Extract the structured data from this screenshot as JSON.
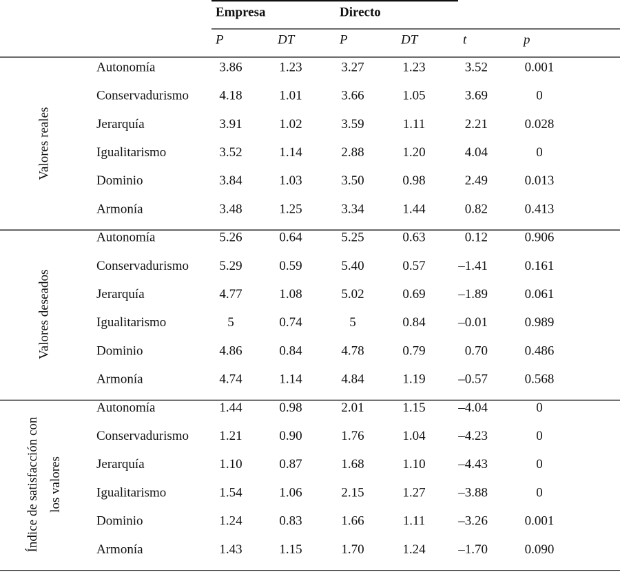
{
  "table": {
    "column_groups": [
      "Empresa",
      "Directo"
    ],
    "subheaders": [
      "P",
      "DT",
      "P",
      "DT",
      "t",
      "p"
    ],
    "groups": [
      {
        "label": [
          "Valores reales"
        ],
        "rows": [
          [
            "Autonomía",
            "3.86",
            "1.23",
            "3.27",
            "1.23",
            "3.52",
            "0.001"
          ],
          [
            "Conservadurismo",
            "4.18",
            "1.01",
            "3.66",
            "1.05",
            "3.69",
            "0"
          ],
          [
            "Jerarquía",
            "3.91",
            "1.02",
            "3.59",
            "1.11",
            "2.21",
            "0.028"
          ],
          [
            "Igualitarismo",
            "3.52",
            "1.14",
            "2.88",
            "1.20",
            "4.04",
            "0"
          ],
          [
            "Dominio",
            "3.84",
            "1.03",
            "3.50",
            "0.98",
            "2.49",
            "0.013"
          ],
          [
            "Armonía",
            "3.48",
            "1.25",
            "3.34",
            "1.44",
            "0.82",
            "0.413"
          ]
        ]
      },
      {
        "label": [
          "Valores deseados"
        ],
        "rows": [
          [
            "Autonomía",
            "5.26",
            "0.64",
            "5.25",
            "0.63",
            "0.12",
            "0.906"
          ],
          [
            "Conservadurismo",
            "5.29",
            "0.59",
            "5.40",
            "0.57",
            "–1.41",
            "0.161"
          ],
          [
            "Jerarquía",
            "4.77",
            "1.08",
            "5.02",
            "0.69",
            "–1.89",
            "0.061"
          ],
          [
            "Igualitarismo",
            "5",
            "0.74",
            "5",
            "0.84",
            "–0.01",
            "0.989"
          ],
          [
            "Dominio",
            "4.86",
            "0.84",
            "4.78",
            "0.79",
            "0.70",
            "0.486"
          ],
          [
            "Armonía",
            "4.74",
            "1.14",
            "4.84",
            "1.19",
            "–0.57",
            "0.568"
          ]
        ]
      },
      {
        "label": [
          "Índice de satisfacción con",
          "los valores"
        ],
        "rows": [
          [
            "Autonomía",
            "1.44",
            "0.98",
            "2.01",
            "1.15",
            "–4.04",
            "0"
          ],
          [
            "Conservadurismo",
            "1.21",
            "0.90",
            "1.76",
            "1.04",
            "–4.23",
            "0"
          ],
          [
            "Jerarquía",
            "1.10",
            "0.87",
            "1.68",
            "1.10",
            "–4.43",
            "0"
          ],
          [
            "Igualitarismo",
            "1.54",
            "1.06",
            "2.15",
            "1.27",
            "–3.88",
            "0"
          ],
          [
            "Dominio",
            "1.24",
            "0.83",
            "1.66",
            "1.11",
            "–3.26",
            "0.001"
          ],
          [
            "Armonía",
            "1.43",
            "1.15",
            "1.70",
            "1.24",
            "–1.70",
            "0.090"
          ]
        ]
      }
    ]
  }
}
